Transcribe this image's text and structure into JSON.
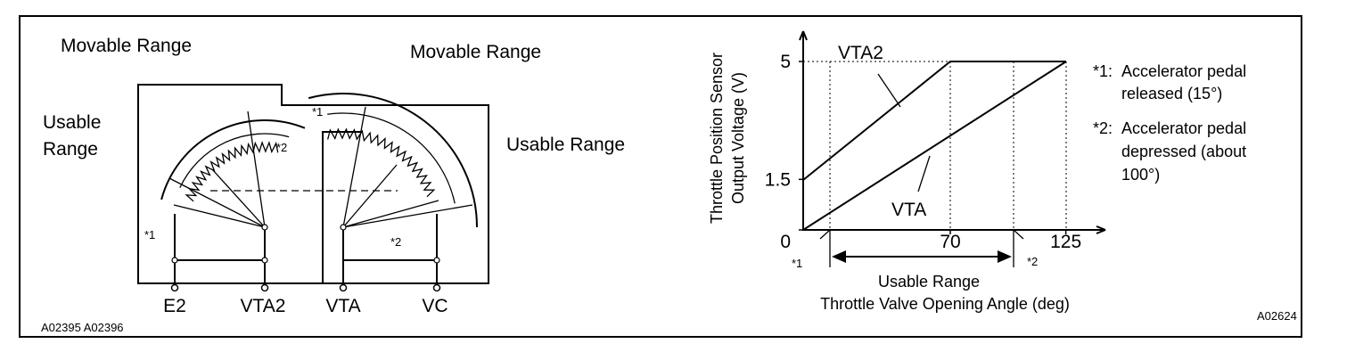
{
  "circuit": {
    "movable_range_left": "Movable Range",
    "usable_range_left": [
      "Usable",
      "Range"
    ],
    "movable_range_right": "Movable Range",
    "usable_range_right": "Usable Range",
    "markers": [
      "*1",
      "*2",
      "*1",
      "*2"
    ],
    "terminals": [
      "E2",
      "VTA2",
      "VTA",
      "VC"
    ],
    "code": "A02395 A02396"
  },
  "graph": {
    "y_label": [
      "Throttle Position Sensor",
      "Output Voltage (V)"
    ],
    "yticks": [
      0,
      1.5,
      5
    ],
    "xticks": [
      70,
      125
    ],
    "origin_label": "0",
    "line_labels": [
      "VTA2",
      "VTA"
    ],
    "markers": [
      "*1",
      "*2"
    ],
    "range_label": "Usable Range",
    "x_label": "Throttle Valve Opening Angle (deg)",
    "notes": [
      {
        "marker": "*1:",
        "lines": [
          "Accelerator pedal",
          "released (15°)"
        ]
      },
      {
        "marker": "*2:",
        "lines": [
          "Accelerator pedal",
          "depressed (about",
          "100°)"
        ]
      }
    ],
    "code": "A02624"
  }
}
